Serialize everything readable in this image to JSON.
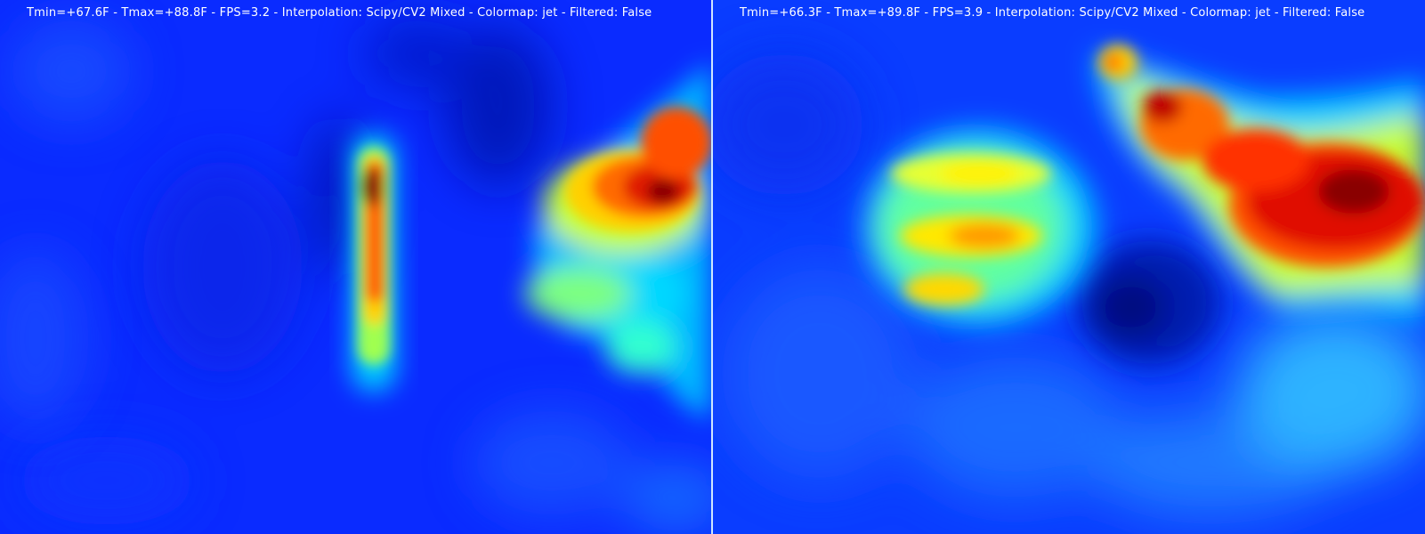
{
  "left_view": {
    "tmin": "+67.6F",
    "tmax": "+88.8F",
    "fps": "3.2",
    "interpolation": "Scipy/CV2 Mixed",
    "colormap": "jet",
    "filtered": "False",
    "status_text": "Tmin=+67.6F - Tmax=+88.8F - FPS=3.2 - Interpolation: Scipy/CV2 Mixed - Colormap: jet - Filtered: False"
  },
  "right_view": {
    "tmin": "+66.3F",
    "tmax": "+89.8F",
    "fps": "3.9",
    "interpolation": "Scipy/CV2 Mixed",
    "colormap": "jet",
    "filtered": "False",
    "status_text": "Tmin=+66.3F - Tmax=+89.8F - FPS=3.9 - Interpolation: Scipy/CV2 Mixed - Colormap: jet - Filtered: False"
  },
  "colors": {
    "background_blue": "#0a2bff",
    "deep_blue": "#001a9a",
    "cyan": "#00d8ff",
    "yellow": "#ffee00",
    "orange": "#ff7a00",
    "red": "#e01000",
    "dark_red": "#8a0000",
    "divider": "#cfe6ff"
  }
}
